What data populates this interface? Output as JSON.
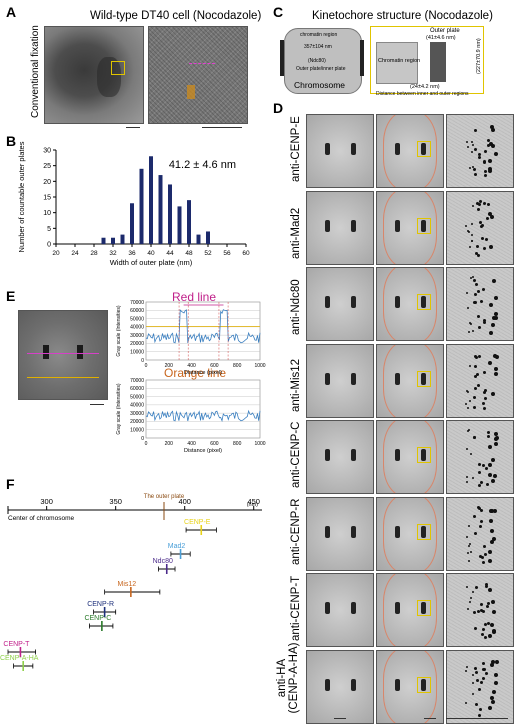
{
  "panels": {
    "A": {
      "label": "A",
      "title": "Wild-type DT40 cell (Nocodazole)",
      "side_label": "Conventional fixation"
    },
    "B": {
      "label": "B",
      "annotation": "41.2 ± 4.6 nm",
      "chart_data": {
        "type": "bar",
        "xlabel": "Width of outer plate (nm)",
        "ylabel": "Number of countable outer plates",
        "x": [
          20,
          22,
          24,
          26,
          28,
          30,
          32,
          34,
          36,
          38,
          40,
          42,
          44,
          46,
          48,
          50,
          52,
          54,
          56,
          58,
          60
        ],
        "values": [
          0,
          0,
          0,
          0,
          0,
          2,
          2,
          3,
          13,
          24,
          28,
          22,
          19,
          12,
          14,
          3,
          4,
          0,
          0,
          0,
          0
        ],
        "xlim": [
          20,
          60
        ],
        "ylim": [
          0,
          30
        ],
        "xticks": [
          20,
          24,
          28,
          32,
          36,
          40,
          44,
          48,
          52,
          56,
          60
        ],
        "yticks": [
          0,
          5,
          10,
          15,
          20,
          25,
          30
        ],
        "color": "#1c2a6b"
      }
    },
    "C": {
      "label": "C",
      "title": "Kinetochore structure (Nocodazole)",
      "outer_plate": "Outer plate",
      "outer_plate_width": "(41±4.6 nm)",
      "chromatin": "Chromatin region",
      "distance": "(24±4.2 nm)",
      "distance_caption": "Distance between inner and outer regions",
      "side_dim": "(227±70.9 nm)",
      "chromosome": "Chromosome",
      "inner_label_1": "chromatin region",
      "inner_label_2": "Outer plate/inner plate",
      "dim_1": "357±104 nm",
      "dim_2": "(Ndc80)"
    },
    "D": {
      "label": "D",
      "rows": [
        "anti-CENP-E",
        "anti-Mad2",
        "anti-Ndc80",
        "anti-Mis12",
        "anti-CENP-C",
        "anti-CENP-R",
        "anti-CENP-T",
        "anti-HA (CENP-A-HA)"
      ]
    },
    "E": {
      "label": "E",
      "red_title": "Red line",
      "orange_title": "Orange line",
      "xlabel": "Distance (pixel)",
      "ylabel": "Gray scale (Intensities)",
      "yticks": [
        "70000",
        "60000",
        "50000",
        "40000",
        "30000",
        "20000",
        "10000",
        "0"
      ],
      "xticks": [
        "0",
        "200",
        "400",
        "600",
        "800",
        "1000"
      ]
    },
    "F": {
      "label": "F",
      "axis_ticks": [
        "300",
        "350",
        "400",
        "450"
      ],
      "unit": "(nm)",
      "center_label": "Center of chromosome",
      "outer_plate_label": "The outer plate",
      "proteins": [
        {
          "name": "CENP-E",
          "color": "#e8d21a"
        },
        {
          "name": "Mad2",
          "color": "#4a9fd8"
        },
        {
          "name": "Ndc80",
          "color": "#4b2a8a"
        },
        {
          "name": "Mis12",
          "color": "#c8661e"
        },
        {
          "name": "CENP-R",
          "color": "#1d2f7a"
        },
        {
          "name": "CENP-C",
          "color": "#2a7a2a"
        },
        {
          "name": "CENP-T",
          "color": "#c0208a"
        },
        {
          "name": "CENP-A-HA",
          "color": "#8fd04a"
        }
      ]
    }
  }
}
